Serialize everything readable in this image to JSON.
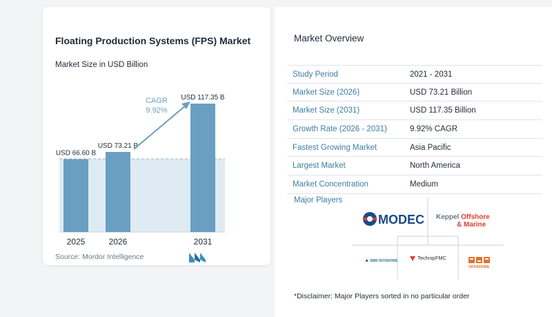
{
  "chart_card": {
    "title": "Floating Production Systems (FPS) Market",
    "subtitle": "Market Size in USD Billion",
    "source": "Source:  Mordor Intelligence",
    "cagr_label": "CAGR",
    "cagr_value": "9.92%"
  },
  "chart_data": {
    "type": "bar",
    "title": "Floating Production Systems (FPS) Market",
    "subtitle": "Market Size in USD Billion",
    "categories": [
      "2025",
      "2026",
      "2031"
    ],
    "values": [
      66.6,
      73.21,
      117.35
    ],
    "data_labels": [
      "USD 66.60 B",
      "USD 73.21 B",
      "USD 117.35 B"
    ],
    "ylim": [
      0,
      117.35
    ],
    "annotation": "CAGR 9.92%",
    "colors": {
      "bar": "#6a9fc2",
      "baseline_band": "#dfebf3",
      "arrow": "#6a9fc2"
    }
  },
  "overview": {
    "title": "Market Overview",
    "rows": [
      {
        "key": "Study Period",
        "value": "2021 - 2031"
      },
      {
        "key": "Market Size (2026)",
        "value": "USD 73.21 Billion"
      },
      {
        "key": "Market Size (2031)",
        "value": "USD 117.35 Billion"
      },
      {
        "key": "Growth Rate (2026 - 2031)",
        "value": "9.92% CAGR"
      },
      {
        "key": "Fastest Growing Market",
        "value": "Asia Pacific"
      },
      {
        "key": "Largest Market",
        "value": "North America"
      },
      {
        "key": "Market Concentration",
        "value": "Medium"
      }
    ]
  },
  "major_players": {
    "title": "Major Players",
    "logos": [
      "MODEC",
      "Keppel Offshore & Marine",
      "SBM Offshore",
      "TechnipFMC",
      "CIMC Offshore"
    ]
  },
  "disclaimer": "*Disclaimer: Major Players sorted in no particular order"
}
